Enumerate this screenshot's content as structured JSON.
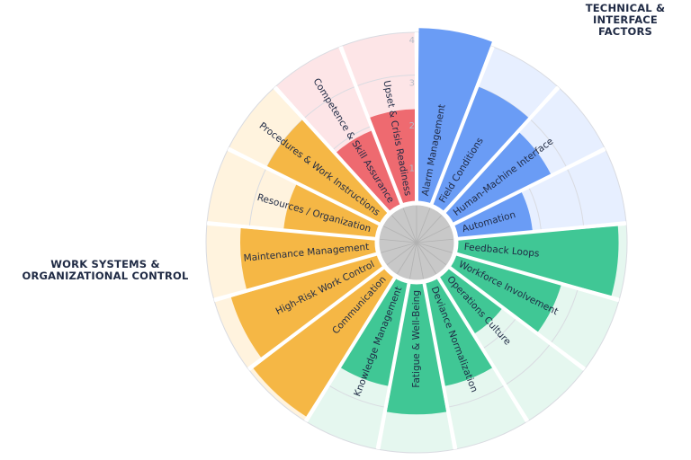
{
  "chart_data": {
    "type": "radial_bar",
    "rlim": [
      0,
      4
    ],
    "ticks": [
      "1",
      "2",
      "3",
      "4"
    ],
    "groups": [
      {
        "name": "TECHNICAL &\nINTERFACE FACTORS",
        "color": "#6a9cf5",
        "bg": "#e7efff"
      },
      {
        "name": "",
        "color": "#40c795",
        "bg": "#e5f7ef"
      },
      {
        "name": "WORK SYSTEMS &\nORGANIZATIONAL CONTROL",
        "color": "#f5b745",
        "bg": "#fff3de"
      },
      {
        "name": "",
        "color": "#ee6a70",
        "bg": "#fde5e7"
      }
    ],
    "segments": [
      {
        "label": "Alarm Management",
        "value": 4.1,
        "group": 0
      },
      {
        "label": "Field Conditions",
        "value": 3.0,
        "group": 0
      },
      {
        "label": "Human-Machine Interface",
        "value": 2.6,
        "group": 0
      },
      {
        "label": "Automation",
        "value": 1.8,
        "group": 0
      },
      {
        "label": "Feedback Loops",
        "value": 3.8,
        "group": 1
      },
      {
        "label": "Workforce Involvement",
        "value": 2.6,
        "group": 1
      },
      {
        "label": "Operations Culture",
        "value": 1.6,
        "group": 1
      },
      {
        "label": "Deviance Normalization",
        "value": 2.5,
        "group": 1
      },
      {
        "label": "Fatigue & Well-Being",
        "value": 3.1,
        "group": 1
      },
      {
        "label": "Knowledge Management",
        "value": 2.5,
        "group": 1
      },
      {
        "label": "Communication",
        "value": 3.9,
        "group": 2
      },
      {
        "label": "High-Risk Work Control",
        "value": 3.6,
        "group": 2
      },
      {
        "label": "Maintenance Management",
        "value": 3.2,
        "group": 2
      },
      {
        "label": "Resources / Organization",
        "value": 2.2,
        "group": 2
      },
      {
        "label": "Procedures & Work Instructions",
        "value": 3.0,
        "group": 2
      },
      {
        "label": "Competence & Skill Assurance",
        "value": 1.9,
        "group": 3
      },
      {
        "label": "Upset & Crisis Readiness",
        "value": 2.2,
        "group": 3
      }
    ]
  }
}
